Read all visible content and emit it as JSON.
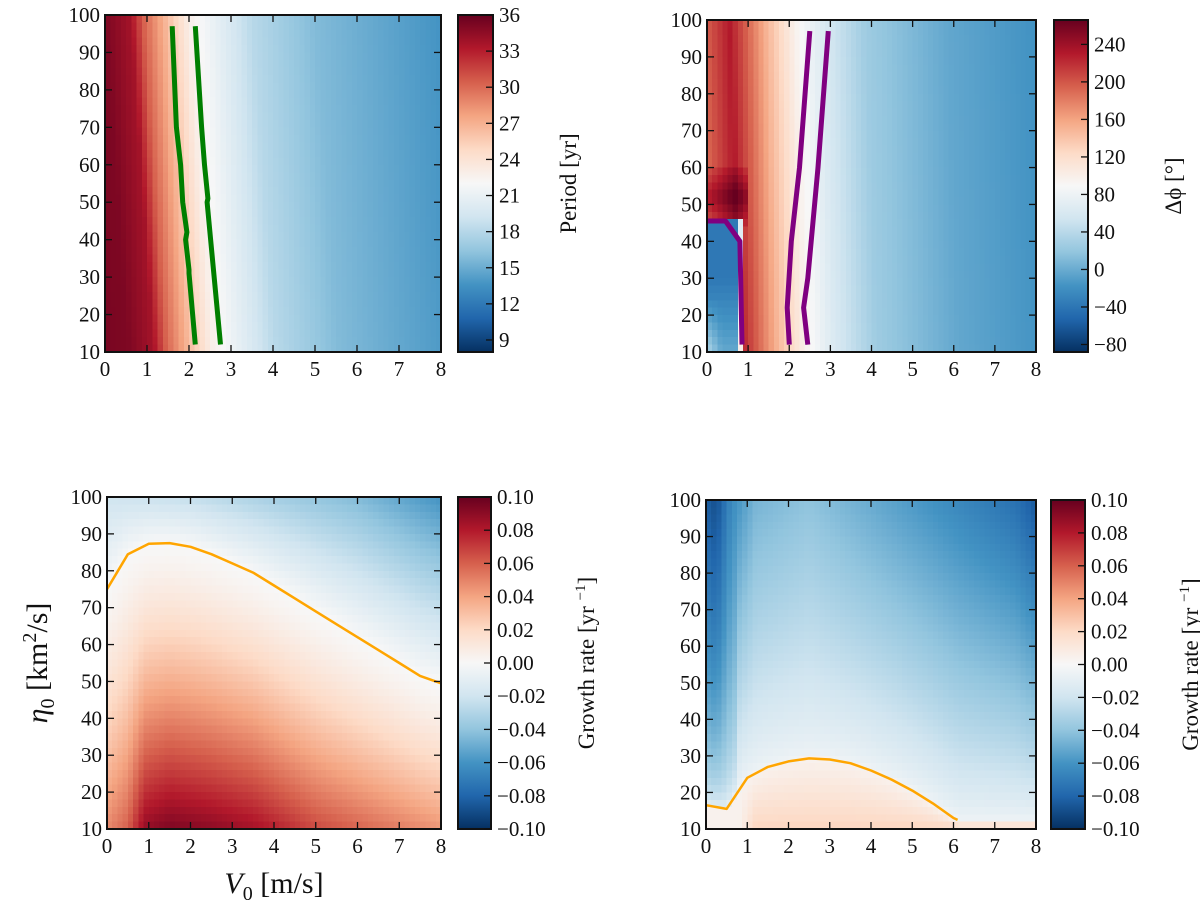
{
  "colormap": {
    "name": "RdBu_r",
    "stops": [
      "#053061",
      "#2166ac",
      "#4393c3",
      "#92c5de",
      "#d1e5f0",
      "#f7f7f7",
      "#fddbc7",
      "#f4a582",
      "#d6604d",
      "#b2182b",
      "#67001f"
    ]
  },
  "chart_data": [
    {
      "type": "heatmap",
      "id": "period",
      "xlim": [
        0,
        8
      ],
      "ylim": [
        10,
        100
      ],
      "xticks": [
        "0",
        "1",
        "2",
        "3",
        "4",
        "5",
        "6",
        "7",
        "8"
      ],
      "yticks": [
        "10",
        "20",
        "30",
        "40",
        "50",
        "60",
        "70",
        "80",
        "90",
        "100"
      ],
      "colorbar": {
        "label": "Period [yr]",
        "range": [
          8,
          36
        ],
        "ticks": [
          "9",
          "12",
          "15",
          "18",
          "21",
          "24",
          "27",
          "30",
          "33",
          "36"
        ],
        "tick_values": [
          9,
          12,
          15,
          18,
          21,
          24,
          27,
          30,
          33,
          36
        ]
      },
      "field_description_values": {
        "x": [
          0,
          0.6,
          0.9,
          1.5,
          2,
          2.6,
          3.5,
          5,
          8
        ],
        "period_yr_at_top": [
          35,
          34,
          30,
          26,
          22.5,
          20.5,
          18,
          16,
          13.5
        ]
      },
      "contours": [
        {
          "color": "#007f00",
          "points": [
            [
              1.6,
              97
            ],
            [
              1.7,
              70
            ],
            [
              1.8,
              60
            ],
            [
              1.85,
              50
            ],
            [
              1.95,
              42
            ],
            [
              1.92,
              40
            ],
            [
              2.0,
              32
            ],
            [
              2.0,
              31
            ],
            [
              2.15,
              12
            ]
          ]
        },
        {
          "color": "#007f00",
          "points": [
            [
              2.15,
              97
            ],
            [
              2.3,
              70
            ],
            [
              2.37,
              60
            ],
            [
              2.45,
              51
            ],
            [
              2.43,
              50
            ],
            [
              2.75,
              12
            ]
          ]
        }
      ]
    },
    {
      "type": "heatmap",
      "id": "phase",
      "xlim": [
        0,
        8
      ],
      "ylim": [
        10,
        100
      ],
      "xticks": [
        "0",
        "1",
        "2",
        "3",
        "4",
        "5",
        "6",
        "7",
        "8"
      ],
      "yticks": [
        "10",
        "20",
        "30",
        "40",
        "50",
        "60",
        "70",
        "80",
        "90",
        "100"
      ],
      "colorbar": {
        "label": "Δϕ [°]",
        "range": [
          -88,
          266
        ],
        "ticks": [
          "−80",
          "−40",
          "0",
          "40",
          "80",
          "120",
          "160",
          "200",
          "240"
        ],
        "tick_values": [
          -80,
          -40,
          0,
          40,
          80,
          120,
          160,
          200,
          240
        ]
      },
      "contours": [
        {
          "color": "#800080",
          "points": [
            [
              0,
              45.5
            ],
            [
              0.45,
              45.5
            ],
            [
              0.8,
              40
            ],
            [
              0.85,
              12
            ]
          ]
        },
        {
          "color": "#800080",
          "points": [
            [
              2.5,
              97
            ],
            [
              2.25,
              60
            ],
            [
              2.05,
              40
            ],
            [
              1.95,
              22
            ],
            [
              2.0,
              12
            ]
          ]
        },
        {
          "color": "#800080",
          "points": [
            [
              2.95,
              97
            ],
            [
              2.7,
              60
            ],
            [
              2.45,
              30
            ],
            [
              2.35,
              22
            ],
            [
              2.45,
              12
            ]
          ]
        }
      ]
    },
    {
      "type": "heatmap",
      "id": "growth1",
      "xlim": [
        0,
        8
      ],
      "ylim": [
        10,
        100
      ],
      "xlabel": "V",
      "xlabel_sub": "0",
      "xlabel_unit": " [m/s]",
      "ylabel": "η",
      "ylabel_sub": "0",
      "ylabel_unit": " [km",
      "ylabel_sup": "2",
      "ylabel_unit2": "/s]",
      "xticks": [
        "0",
        "1",
        "2",
        "3",
        "4",
        "5",
        "6",
        "7",
        "8"
      ],
      "yticks": [
        "10",
        "20",
        "30",
        "40",
        "50",
        "60",
        "70",
        "80",
        "90",
        "100"
      ],
      "colorbar": {
        "label": "Growth rate [yr −1]",
        "label_main": "Growth rate [yr ",
        "label_sup": "−1",
        "label_end": "]",
        "range": [
          -0.1,
          0.1
        ],
        "ticks": [
          "−0.10",
          "−0.08",
          "−0.06",
          "−0.04",
          "−0.02",
          "0.00",
          "0.02",
          "0.04",
          "0.06",
          "0.08",
          "0.10"
        ],
        "tick_values": [
          -0.1,
          -0.08,
          -0.06,
          -0.04,
          -0.02,
          0,
          0.02,
          0.04,
          0.06,
          0.08,
          0.1
        ]
      },
      "contours": [
        {
          "color": "#ffa500",
          "points": [
            [
              0,
              75
            ],
            [
              0.5,
              84.5
            ],
            [
              1,
              87.3
            ],
            [
              1.5,
              87.5
            ],
            [
              2,
              86.5
            ],
            [
              2.5,
              84.5
            ],
            [
              3,
              82
            ],
            [
              3.5,
              79.5
            ],
            [
              4,
              76
            ],
            [
              4.5,
              72.5
            ],
            [
              5,
              69
            ],
            [
              5.5,
              65.5
            ],
            [
              6,
              62
            ],
            [
              6.5,
              58.5
            ],
            [
              7,
              55
            ],
            [
              7.5,
              51.5
            ],
            [
              8,
              49.5
            ]
          ]
        }
      ]
    },
    {
      "type": "heatmap",
      "id": "growth2",
      "xlim": [
        0,
        8
      ],
      "ylim": [
        10,
        100
      ],
      "xticks": [
        "0",
        "1",
        "2",
        "3",
        "4",
        "5",
        "6",
        "7",
        "8"
      ],
      "yticks": [
        "10",
        "20",
        "30",
        "40",
        "50",
        "60",
        "70",
        "80",
        "90",
        "100"
      ],
      "colorbar": {
        "label": "Growth rate [yr −1]",
        "label_main": "Growth rate [yr ",
        "label_sup": "−1",
        "label_end": "]",
        "range": [
          -0.1,
          0.1
        ],
        "ticks": [
          "−0.10",
          "−0.08",
          "−0.06",
          "−0.04",
          "−0.02",
          "0.00",
          "0.02",
          "0.04",
          "0.06",
          "0.08",
          "0.10"
        ],
        "tick_values": [
          -0.1,
          -0.08,
          -0.06,
          -0.04,
          -0.02,
          0,
          0.02,
          0.04,
          0.06,
          0.08,
          0.1
        ]
      },
      "contours": [
        {
          "color": "#ffa500",
          "points": [
            [
              0,
              16.5
            ],
            [
              0.5,
              15.5
            ],
            [
              1,
              24
            ],
            [
              1.5,
              27
            ],
            [
              2,
              28.5
            ],
            [
              2.5,
              29.3
            ],
            [
              3,
              29
            ],
            [
              3.5,
              28
            ],
            [
              4,
              26
            ],
            [
              4.5,
              23.5
            ],
            [
              5,
              20.5
            ],
            [
              5.5,
              17
            ],
            [
              6,
              13
            ],
            [
              6.1,
              12.5
            ]
          ]
        }
      ]
    }
  ]
}
